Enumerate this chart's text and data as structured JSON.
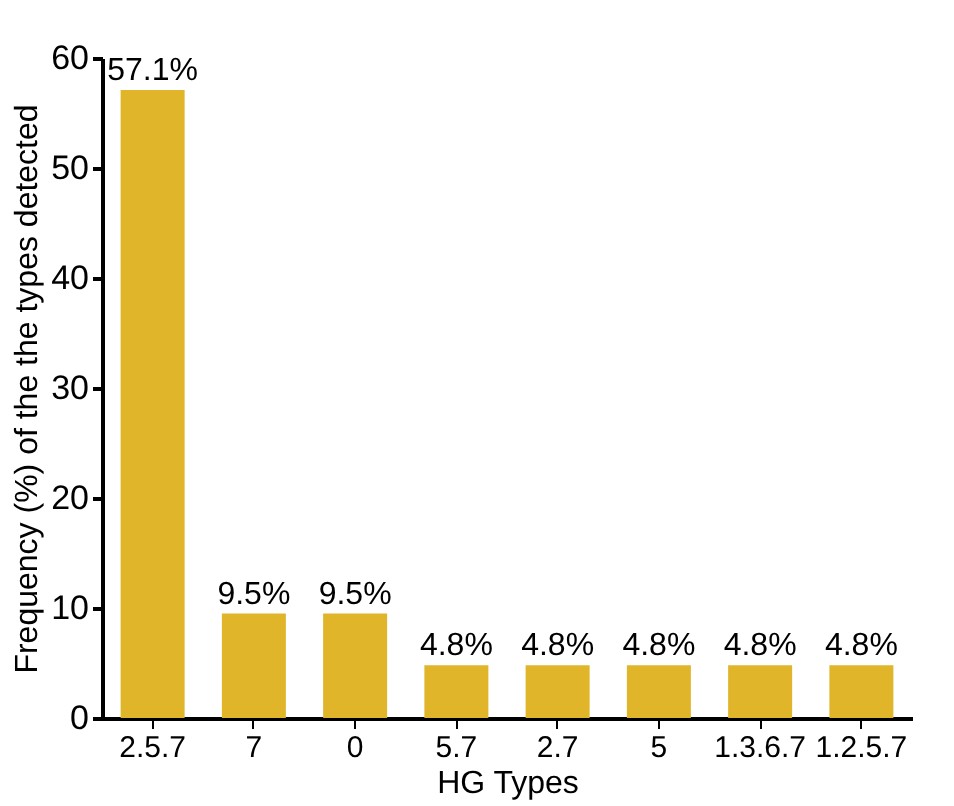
{
  "chart_data": {
    "type": "bar",
    "xlabel": "HG Types",
    "ylabel": "Frequency (%) of the the types detected",
    "categories": [
      "2.5.7",
      "7",
      "0",
      "5.7",
      "2.7",
      "5",
      "1.3.6.7",
      "1.2.5.7"
    ],
    "values": [
      57.1,
      9.5,
      9.5,
      4.8,
      4.8,
      4.8,
      4.8,
      4.8
    ],
    "value_labels": [
      "57.1%",
      "9.5%",
      "9.5%",
      "4.8%",
      "4.8%",
      "4.8%",
      "4.8%",
      "4.8%"
    ],
    "color": "#e0b52a",
    "ylim": [
      0,
      60
    ],
    "yticks": [
      0,
      10,
      20,
      30,
      40,
      50,
      60
    ],
    "grid": false
  }
}
